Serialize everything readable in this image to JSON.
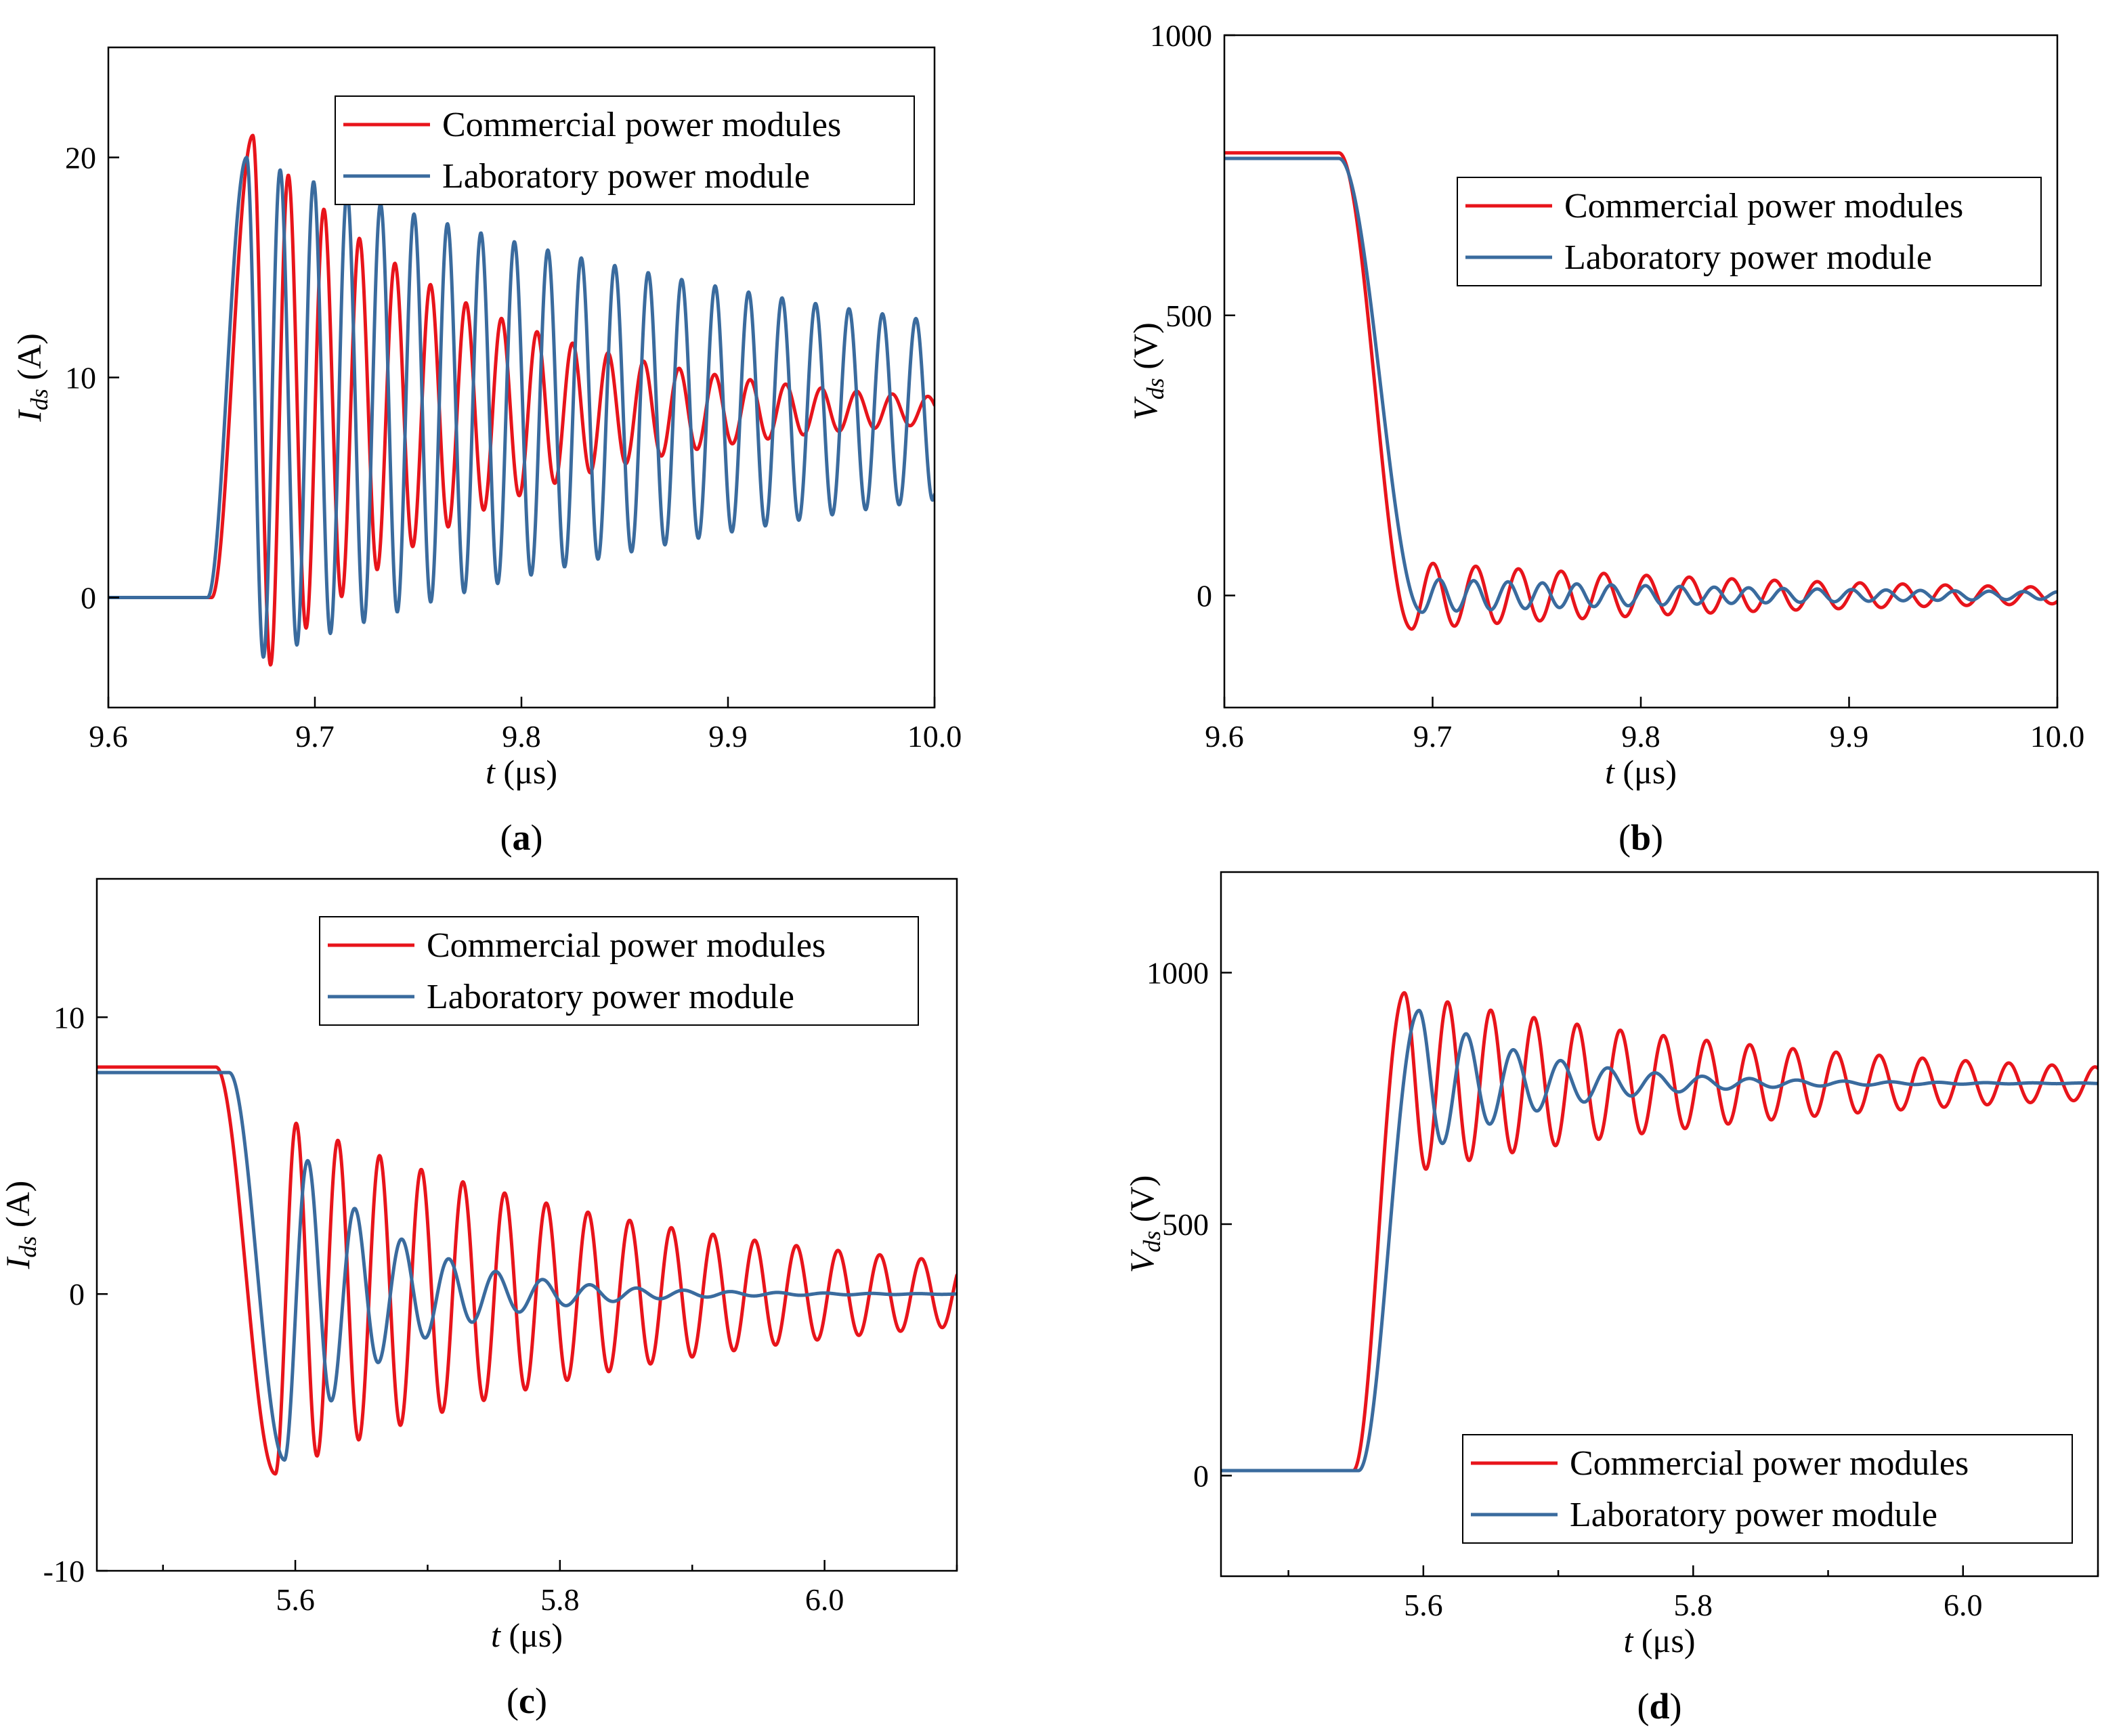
{
  "colors": {
    "commercial": "#e8141b",
    "laboratory": "#3a6b9e"
  },
  "legend": {
    "commercial": "Commercial power modules",
    "laboratory": "Laboratory power module"
  },
  "chart_data": [
    {
      "id": "a",
      "type": "line",
      "caption_open": "(",
      "caption_letter": "a",
      "caption_close": ")",
      "xlabel_var": "t",
      "xlabel_unit": " (μs)",
      "ylabel_var": "I",
      "ylabel_sub": "ds",
      "ylabel_unit": " (A)",
      "xlim": [
        9.6,
        10.0
      ],
      "ylim": [
        -5,
        25
      ],
      "xticks": [
        9.6,
        9.7,
        9.8,
        9.9,
        10.0
      ],
      "xtick_labels": [
        "9.6",
        "9.7",
        "9.8",
        "9.9",
        "10.0"
      ],
      "yticks": [
        0,
        10,
        20
      ],
      "ytick_labels": [
        "0",
        "10",
        "20"
      ],
      "legend_position": "top-right",
      "series": [
        {
          "name": "Commercial power modules",
          "key": "commercial",
          "kind": "rise",
          "t0": 9.65,
          "rise": 0.02,
          "initial": 0,
          "final": 8.5,
          "amplitude": 12.5,
          "period": 0.0172,
          "tau": 0.11
        },
        {
          "name": "Laboratory power module",
          "key": "laboratory",
          "kind": "rise",
          "t0": 9.648,
          "rise": 0.019,
          "initial": 0,
          "final": 8.5,
          "amplitude": 11.5,
          "period": 0.0162,
          "tau": 0.32
        }
      ]
    },
    {
      "id": "b",
      "type": "line",
      "caption_open": "(",
      "caption_letter": "b",
      "caption_close": ")",
      "xlabel_var": "t",
      "xlabel_unit": " (μs)",
      "ylabel_var": "V",
      "ylabel_sub": "ds",
      "ylabel_unit": " (V)",
      "xlim": [
        9.6,
        10.0
      ],
      "ylim": [
        -200,
        1000
      ],
      "xticks": [
        9.6,
        9.7,
        9.8,
        9.9,
        10.0
      ],
      "xtick_labels": [
        "9.6",
        "9.7",
        "9.8",
        "9.9",
        "10.0"
      ],
      "yticks": [
        0,
        500,
        1000
      ],
      "ytick_labels": [
        "0",
        "500",
        "1000"
      ],
      "legend_position": "top-right",
      "series": [
        {
          "name": "Commercial power modules",
          "key": "commercial",
          "kind": "fall",
          "t0": 9.655,
          "rise": 0.035,
          "initial": 790,
          "final": 0,
          "amplitude": 60,
          "period": 0.0205,
          "tau": 0.22
        },
        {
          "name": "Laboratory power module",
          "key": "laboratory",
          "kind": "fall",
          "t0": 9.655,
          "rise": 0.04,
          "initial": 780,
          "final": 0,
          "amplitude": 30,
          "period": 0.0165,
          "tau": 0.2
        }
      ]
    },
    {
      "id": "c",
      "type": "line",
      "caption_open": "(",
      "caption_letter": "c",
      "caption_close": ")",
      "xlabel_var": "t",
      "xlabel_unit": " (μs)",
      "ylabel_var": "I",
      "ylabel_sub": "ds",
      "ylabel_unit": " (A)",
      "xlim": [
        5.45,
        6.1
      ],
      "ylim": [
        -10,
        15
      ],
      "xticks": [
        5.6,
        5.8,
        6.0
      ],
      "xtick_labels": [
        "5.6",
        "5.8",
        "6.0"
      ],
      "yticks": [
        -10,
        0,
        10
      ],
      "ytick_labels": [
        "-10",
        "0",
        "10"
      ],
      "minor_xticks": [
        5.5,
        5.7,
        5.9,
        6.1
      ],
      "legend_position": "top-right",
      "series": [
        {
          "name": "Commercial power modules",
          "key": "commercial",
          "kind": "fall",
          "t0": 5.54,
          "rise": 0.045,
          "initial": 8.2,
          "final": 0,
          "amplitude": 6.5,
          "period": 0.0315,
          "tau": 0.3
        },
        {
          "name": "Laboratory power module",
          "key": "laboratory",
          "kind": "fall",
          "t0": 5.55,
          "rise": 0.042,
          "initial": 8.0,
          "final": 0,
          "amplitude": 6.0,
          "period": 0.0355,
          "tau": 0.08
        }
      ]
    },
    {
      "id": "d",
      "type": "line",
      "caption_open": "(",
      "caption_letter": "d",
      "caption_close": ")",
      "xlabel_var": "t",
      "xlabel_unit": " (μs)",
      "ylabel_var": "V",
      "ylabel_sub": "ds",
      "ylabel_unit": " (V)",
      "xlim": [
        5.45,
        6.1
      ],
      "ylim": [
        -200,
        1200
      ],
      "xticks": [
        5.6,
        5.8,
        6.0
      ],
      "xtick_labels": [
        "5.6",
        "5.8",
        "6.0"
      ],
      "yticks": [
        0,
        500,
        1000
      ],
      "ytick_labels": [
        "0",
        "500",
        "1000"
      ],
      "minor_xticks": [
        5.5,
        5.7,
        5.9,
        6.1
      ],
      "legend_position": "bottom-right",
      "series": [
        {
          "name": "Commercial power modules",
          "key": "commercial",
          "kind": "rise",
          "t0": 5.548,
          "rise": 0.038,
          "initial": 10,
          "final": 780,
          "amplitude": 180,
          "period": 0.032,
          "tau": 0.3
        },
        {
          "name": "Laboratory power module",
          "key": "laboratory",
          "kind": "rise",
          "t0": 5.552,
          "rise": 0.045,
          "initial": 10,
          "final": 780,
          "amplitude": 145,
          "period": 0.035,
          "tau": 0.09
        }
      ]
    }
  ]
}
